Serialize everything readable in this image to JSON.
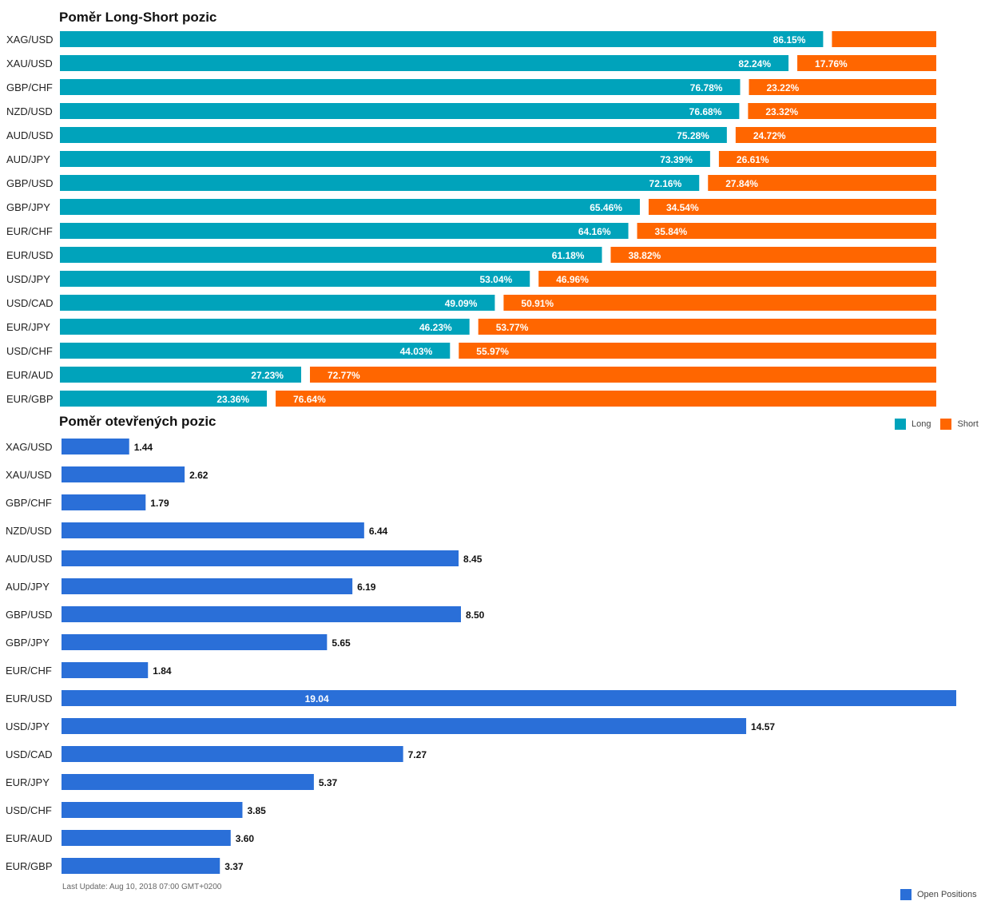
{
  "colors": {
    "long": "#00A3BB",
    "short": "#FF6600",
    "open": "#2A6FD8"
  },
  "chart_data": [
    {
      "type": "bar",
      "stacked": true,
      "orientation": "horizontal",
      "title": "Poměr Long-Short pozic",
      "categories": [
        "XAG/USD",
        "XAU/USD",
        "GBP/CHF",
        "NZD/USD",
        "AUD/USD",
        "AUD/JPY",
        "GBP/USD",
        "GBP/JPY",
        "EUR/CHF",
        "EUR/USD",
        "USD/JPY",
        "USD/CAD",
        "EUR/JPY",
        "USD/CHF",
        "EUR/AUD",
        "EUR/GBP"
      ],
      "series": [
        {
          "name": "Long",
          "values": [
            86.15,
            82.24,
            76.78,
            76.68,
            75.28,
            73.39,
            72.16,
            65.46,
            64.16,
            61.18,
            53.04,
            49.09,
            46.23,
            44.03,
            27.23,
            23.36
          ],
          "labels": [
            "86.15%",
            "82.24%",
            "76.78%",
            "76.68%",
            "75.28%",
            "73.39%",
            "72.16%",
            "65.46%",
            "64.16%",
            "61.18%",
            "53.04%",
            "49.09%",
            "46.23%",
            "44.03%",
            "27.23%",
            "23.36%"
          ]
        },
        {
          "name": "Short",
          "values": [
            13.85,
            17.76,
            23.22,
            23.32,
            24.72,
            26.61,
            27.84,
            34.54,
            35.84,
            38.82,
            46.96,
            50.91,
            53.77,
            55.97,
            72.77,
            76.64
          ],
          "labels": [
            "",
            "17.76%",
            "23.22%",
            "23.32%",
            "24.72%",
            "26.61%",
            "27.84%",
            "34.54%",
            "35.84%",
            "38.82%",
            "46.96%",
            "50.91%",
            "53.77%",
            "55.97%",
            "72.77%",
            "76.64%"
          ]
        }
      ],
      "xlim": [
        0,
        100
      ],
      "legend": "bottom-right"
    },
    {
      "type": "bar",
      "orientation": "horizontal",
      "title": "Poměr otevřených pozic",
      "categories": [
        "XAG/USD",
        "XAU/USD",
        "GBP/CHF",
        "NZD/USD",
        "AUD/USD",
        "AUD/JPY",
        "GBP/USD",
        "GBP/JPY",
        "EUR/CHF",
        "EUR/USD",
        "USD/JPY",
        "USD/CAD",
        "EUR/JPY",
        "USD/CHF",
        "EUR/AUD",
        "EUR/GBP"
      ],
      "series": [
        {
          "name": "Open Positions",
          "values": [
            1.44,
            2.62,
            1.79,
            6.44,
            8.45,
            6.19,
            8.5,
            5.65,
            1.84,
            19.04,
            14.57,
            7.27,
            5.37,
            3.85,
            3.6,
            3.37
          ],
          "labels": [
            "1.44",
            "2.62",
            "1.79",
            "6.44",
            "8.45",
            "6.19",
            "8.50",
            "5.65",
            "1.84",
            "19.04",
            "14.57",
            "7.27",
            "5.37",
            "3.85",
            "3.60",
            "3.37"
          ]
        }
      ],
      "xlim": [
        0,
        19.04
      ],
      "legend": "bottom-right"
    }
  ],
  "legend1": {
    "long": "Long",
    "short": "Short"
  },
  "legend2": {
    "open": "Open Positions"
  },
  "footer": "Last Update: Aug 10, 2018 07:00 GMT+0200"
}
